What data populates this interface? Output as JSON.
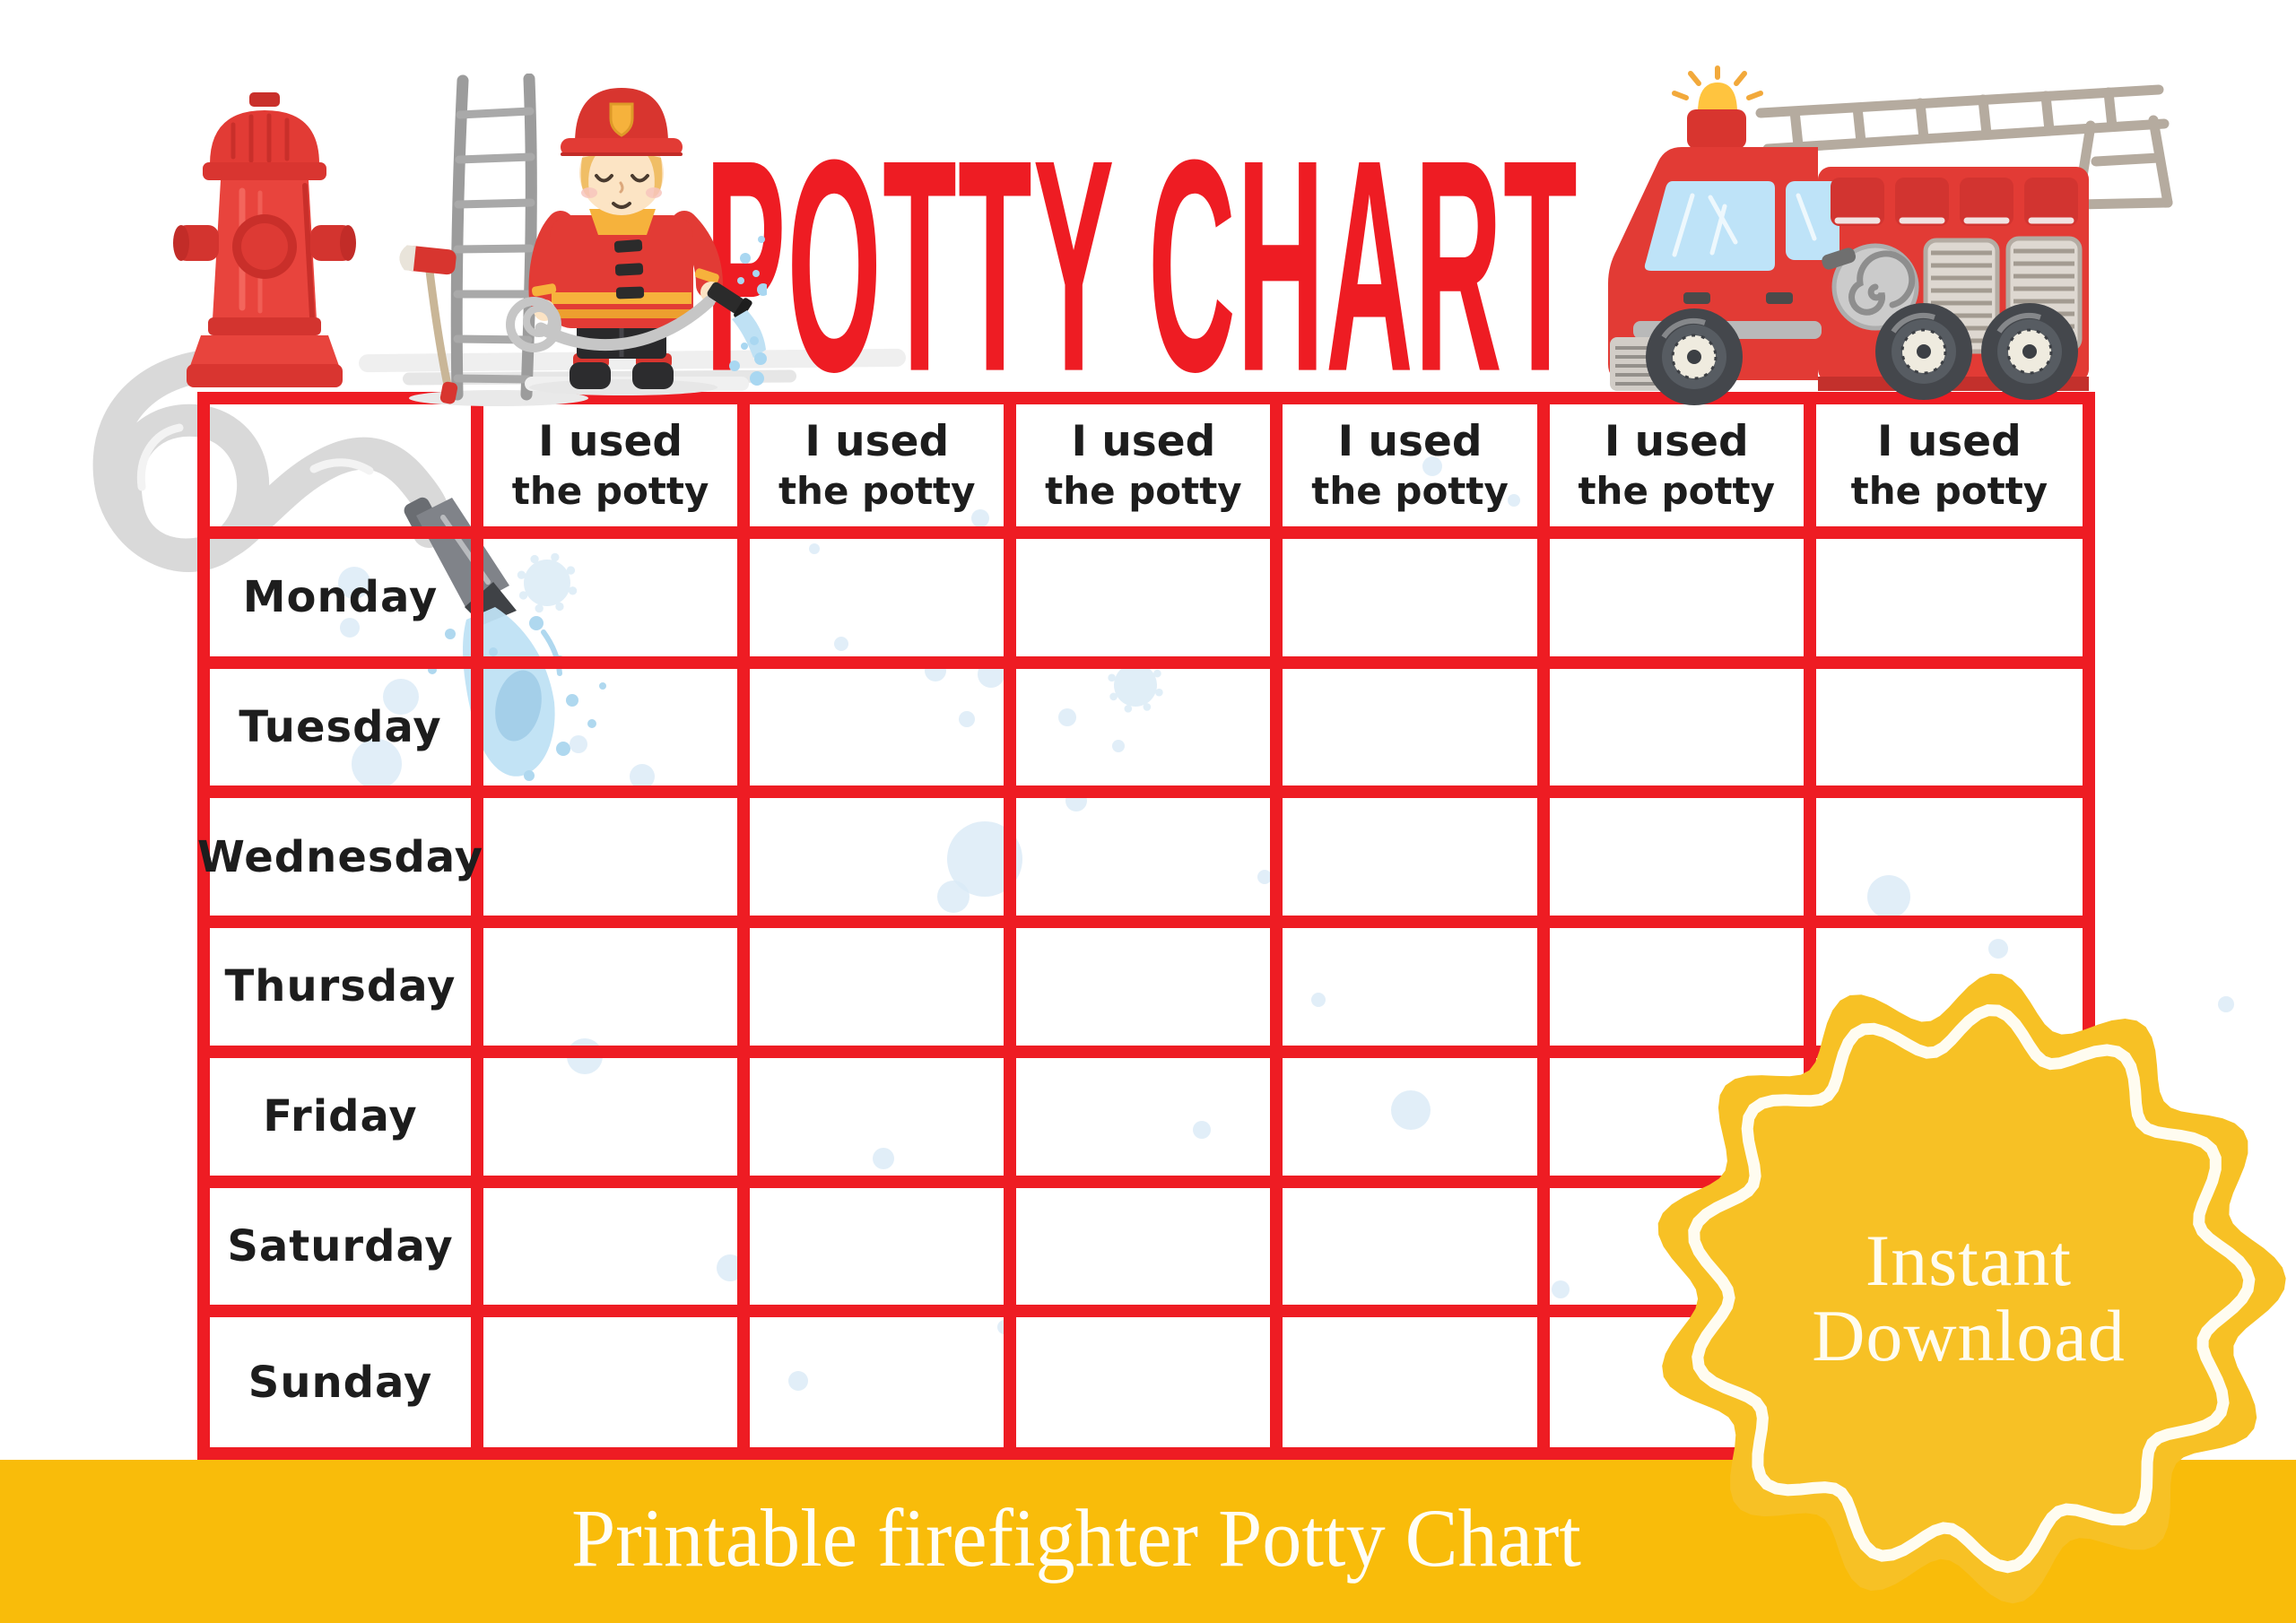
{
  "title": "POTTY CHART",
  "table": {
    "corner_label": "",
    "header_cells": [
      {
        "line1": "I used",
        "line2": "the potty"
      },
      {
        "line1": "I used",
        "line2": "the potty"
      },
      {
        "line1": "I used",
        "line2": "the potty"
      },
      {
        "line1": "I used",
        "line2": "the potty"
      },
      {
        "line1": "I used",
        "line2": "the potty"
      },
      {
        "line1": "I used",
        "line2": "the potty"
      }
    ],
    "days": [
      "Monday",
      "Tuesday",
      "Wednesday",
      "Thursday",
      "Friday",
      "Saturday",
      "Sunday"
    ]
  },
  "banner": {
    "label": "Printable firefighter Potty Chart"
  },
  "badge": {
    "line1": "Instant",
    "line2": "Download"
  },
  "colors": {
    "grid_red": "#EE1C23",
    "title_red": "#EE1C23",
    "text_black": "#1D1D1D",
    "banner_yellow": "#F9BC0A",
    "banner_text_white": "#FFFEF6",
    "badge_yellow": "#F7C125",
    "badge_ring_white": "#FFFCF0",
    "illustration_red": "#E23B35",
    "water_blue": "#BFE1F4",
    "splat_blue": "#D9EAF6",
    "hose_gray": "#D6D6D6",
    "ladder_gray": "#9C9C9C"
  },
  "illustrations": {
    "fire_hydrant": "fire-hydrant-icon",
    "ladder_axe": "ladder-and-axe-icon",
    "firefighter": "firefighter-boy-icon",
    "fire_truck": "fire-truck-icon",
    "fire_hose": "fire-hose-icon"
  }
}
